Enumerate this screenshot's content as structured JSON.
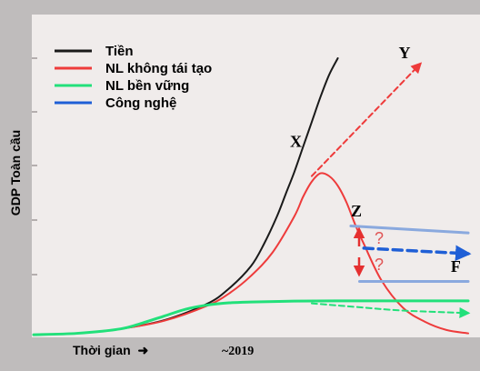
{
  "colors": {
    "frame": "#bfbcbc",
    "plot_bg": "#f0eceb",
    "tien": "#1a1a1a",
    "nl_khong_tai_tao": "#ee3b3b",
    "nl_ben_vung": "#22e07a",
    "cong_nghe": "#1f5fd6",
    "cong_nghe_light": "#8aa9de",
    "question_red": "#e05555"
  },
  "chart_data": {
    "type": "line",
    "title": "",
    "ylabel": "GDP Toàn cầu",
    "xlabel": "Thời gian",
    "xlabel_arrow": "➜",
    "x_tick": "~2019",
    "legend_position": "top-left",
    "legend": [
      {
        "key": "tien",
        "label": "Tiền",
        "color": "#1a1a1a"
      },
      {
        "key": "nl_khong_tai_tao",
        "label": "NL không tái tạo",
        "color": "#ee3b3b"
      },
      {
        "key": "nl_ben_vung",
        "label": "NL bền vững",
        "color": "#22e07a"
      },
      {
        "key": "cong_nghe",
        "label": "Công nghệ",
        "color": "#1f5fd6"
      }
    ],
    "xlim": [
      0,
      100
    ],
    "ylim": [
      0,
      100
    ],
    "series": [
      {
        "name": "Tiền",
        "x": [
          0,
          10,
          20,
          30,
          40,
          45,
          50,
          53,
          56,
          58,
          60,
          62,
          64,
          66,
          68,
          70
        ],
        "y": [
          0.3,
          0.8,
          2.4,
          5.5,
          11.5,
          17,
          25,
          33,
          43,
          51,
          59,
          68,
          77,
          86,
          94,
          100
        ]
      },
      {
        "name": "NL không tái tạo",
        "x": [
          0,
          10,
          20,
          30,
          40,
          45,
          50,
          55,
          60,
          62,
          64,
          66,
          68,
          70,
          72,
          74,
          76,
          80,
          85,
          90,
          95,
          100
        ],
        "y": [
          0.3,
          0.8,
          2.4,
          5.3,
          10.8,
          15.2,
          21.5,
          30,
          43,
          50,
          55.5,
          58.5,
          57.5,
          54,
          48,
          40,
          33,
          20,
          10,
          5,
          2,
          0.8
        ]
      },
      {
        "name": "NL bền vững",
        "x": [
          0,
          10,
          20,
          25,
          30,
          35,
          40,
          45,
          50,
          60,
          70,
          80,
          90,
          100
        ],
        "y": [
          0.3,
          0.8,
          2.4,
          4.5,
          7,
          9.5,
          11,
          11.8,
          12.1,
          12.4,
          12.5,
          12.5,
          12.5,
          12.5
        ]
      },
      {
        "name": "NL bền vững (dự báo)",
        "style": "dashed",
        "x": [
          64,
          75,
          85,
          100
        ],
        "y": [
          11.6,
          10.2,
          9.0,
          8.1
        ]
      },
      {
        "name": "Y",
        "style": "dashed",
        "color": "#ee3b3b",
        "x": [
          64,
          89
        ],
        "y": [
          57.5,
          98
        ]
      },
      {
        "name": "Công nghệ (trên)",
        "color": "#8aa9de",
        "x": [
          73,
          100
        ],
        "y": [
          39.5,
          37
        ]
      },
      {
        "name": "Công nghệ (dưới)",
        "color": "#8aa9de",
        "x": [
          75,
          100
        ],
        "y": [
          19.5,
          19.5
        ]
      },
      {
        "name": "F",
        "style": "dashed",
        "color": "#1f5fd6",
        "x": [
          76,
          100
        ],
        "y": [
          31.5,
          29.5
        ]
      }
    ],
    "annotations": [
      {
        "text": "Y",
        "x": 84,
        "y": 100
      },
      {
        "text": "X",
        "x": 59,
        "y": 68
      },
      {
        "text": "Z",
        "x": 73,
        "y": 43
      },
      {
        "text": "F",
        "x": 96,
        "y": 23
      }
    ],
    "question_marks": [
      "?",
      "?"
    ]
  }
}
